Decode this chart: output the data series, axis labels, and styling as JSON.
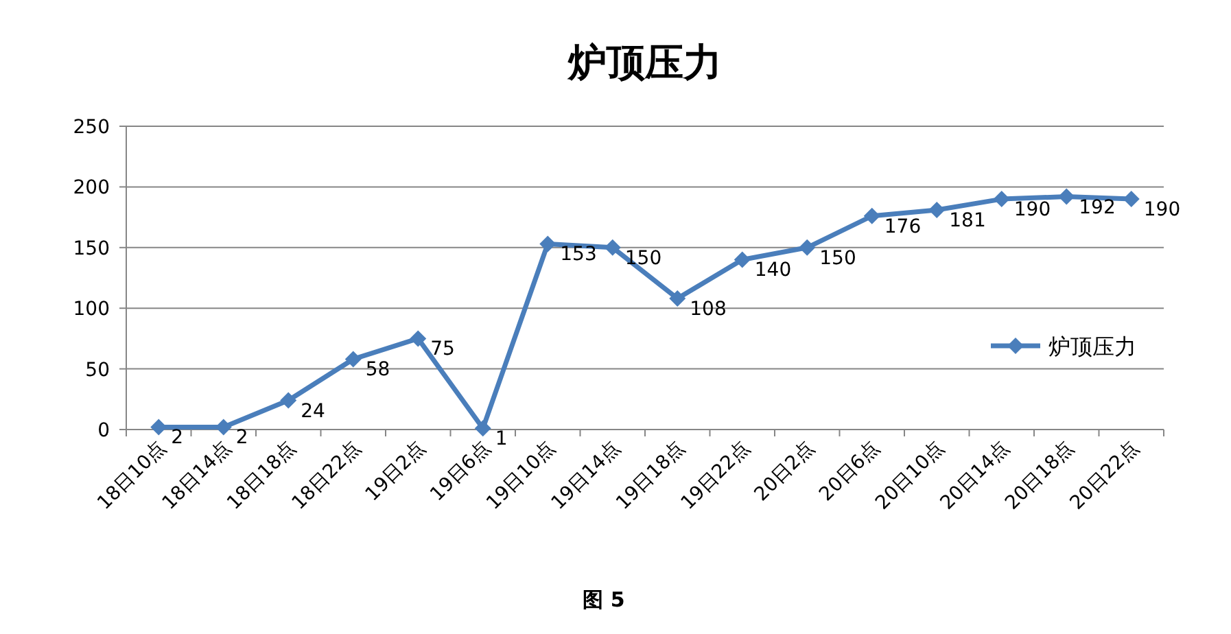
{
  "chart_data": {
    "type": "line",
    "title": "炉顶压力",
    "categories": [
      "18日10点",
      "18日14点",
      "18日18点",
      "18日22点",
      "19日2点",
      "19日6点",
      "19日10点",
      "19日14点",
      "19日18点",
      "19日22点",
      "20日2点",
      "20日6点",
      "20日10点",
      "20日14点",
      "20日18点",
      "20日22点"
    ],
    "series": [
      {
        "name": "炉顶压力",
        "color": "#4a7ebb",
        "values": [
          2,
          2,
          24,
          58,
          75,
          1,
          153,
          150,
          108,
          140,
          150,
          176,
          181,
          190,
          192,
          190
        ]
      }
    ],
    "ylim": [
      0,
      250
    ],
    "yticks": [
      0,
      50,
      100,
      150,
      200,
      250
    ],
    "grid": "y",
    "legend": "right",
    "marker": "diamond",
    "line_style": "solid",
    "data_labels": true,
    "annotations": [
      "图 5"
    ]
  }
}
